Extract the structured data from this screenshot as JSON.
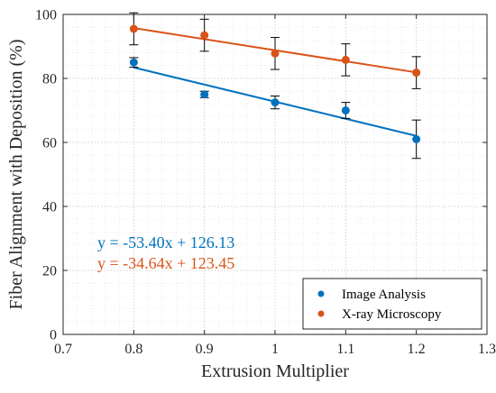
{
  "chart_data": {
    "type": "scatter",
    "xlabel": "Extrusion Multiplier",
    "ylabel": "Fiber Alignment with Deposition (%)",
    "xlim": [
      0.7,
      1.3
    ],
    "ylim": [
      0,
      100
    ],
    "x_ticks": [
      "0.7",
      "0.8",
      "0.9",
      "1",
      "1.1",
      "1.2",
      "1.3"
    ],
    "y_ticks": [
      "0",
      "20",
      "40",
      "60",
      "80",
      "100"
    ],
    "grid": "dotted, with minor grid",
    "legend_position": "bottom-right",
    "series": [
      {
        "name": "Image Analysis",
        "color": "#0072BD",
        "x": [
          0.8,
          0.9,
          1.0,
          1.1,
          1.2
        ],
        "y": [
          85.0,
          75.0,
          72.5,
          70.0,
          61.0
        ],
        "error": [
          1.5,
          1.0,
          2.0,
          2.5,
          6.0
        ],
        "fit": {
          "slope": -53.4,
          "intercept": 126.13,
          "equation": "y = -53.40x + 126.13"
        }
      },
      {
        "name": "X-ray Microscopy",
        "color": "#D95319",
        "x": [
          0.8,
          0.9,
          1.0,
          1.1,
          1.2
        ],
        "y": [
          95.5,
          93.5,
          87.8,
          85.8,
          81.8
        ],
        "error": [
          5.0,
          5.0,
          5.0,
          5.0,
          5.0
        ],
        "fit": {
          "slope": -34.64,
          "intercept": 123.45,
          "equation": "y = -34.64x + 123.45"
        }
      }
    ]
  }
}
